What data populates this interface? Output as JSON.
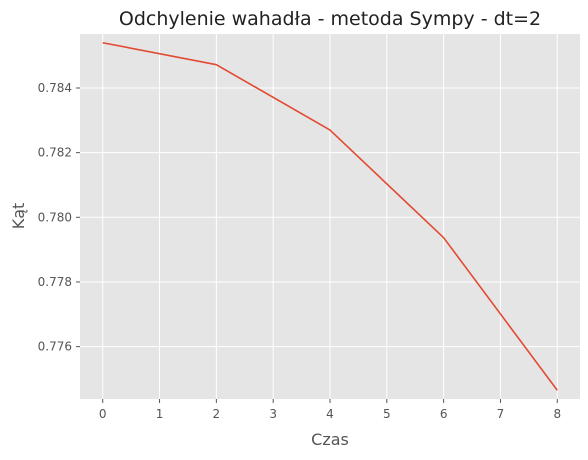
{
  "chart_data": {
    "type": "line",
    "title": "Odchylenie wahadła - metoda Sympy - dt=2",
    "xlabel": "Czas",
    "ylabel": "Kąt",
    "x": [
      0,
      2,
      4,
      6,
      8
    ],
    "series": [
      {
        "values": [
          0.7854,
          0.78472,
          0.7827,
          0.77937,
          0.77465
        ],
        "color": "#E24A33"
      }
    ],
    "xlim": [
      -0.4,
      8.4
    ],
    "ylim": [
      0.77438,
      0.78567
    ],
    "xticks": [
      0,
      1,
      2,
      3,
      4,
      5,
      6,
      7,
      8
    ],
    "yticks": [
      0.776,
      0.778,
      0.78,
      0.782,
      0.784
    ],
    "yticklabels": [
      "0.776",
      "0.778",
      "0.780",
      "0.782",
      "0.784"
    ],
    "grid": true,
    "style": {
      "background": "#E5E5E5",
      "grid_color": "#FFFFFF"
    }
  }
}
